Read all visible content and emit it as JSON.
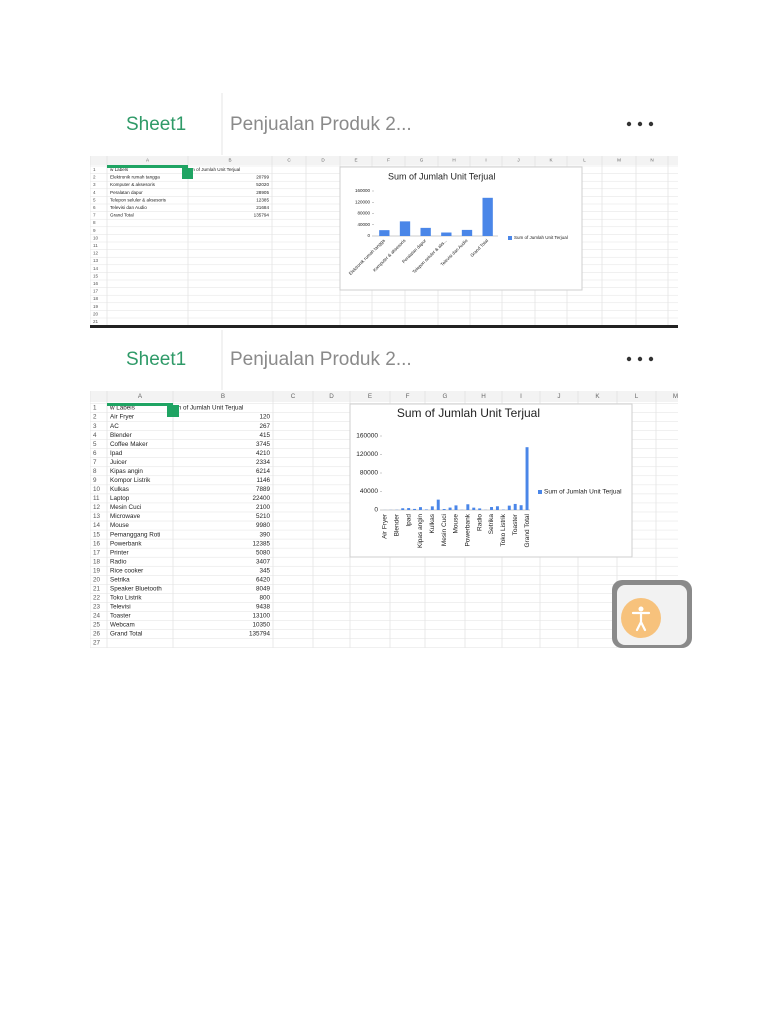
{
  "panels": [
    {
      "tabs": {
        "sheet": "Sheet1",
        "file": "Penjualan Produk 2..."
      },
      "columns": [
        "A",
        "B",
        "C",
        "D",
        "E",
        "F",
        "G",
        "H",
        "I",
        "J",
        "K",
        "L",
        "M",
        "N"
      ],
      "row_numbers": [
        1,
        2,
        3,
        4,
        5,
        6,
        7,
        8,
        9,
        10,
        11,
        12,
        13,
        14,
        15,
        16,
        17,
        18,
        19,
        20,
        21
      ],
      "rows": [
        [
          "w Labels",
          "m of Jumlah Unit Terjual"
        ],
        [
          "Elektronik rumah tangga",
          20799
        ],
        [
          "Komputer & aksesoris",
          52020
        ],
        [
          "Peralatan dapur",
          28905
        ],
        [
          "Telepon seluler & aksesoris",
          12385
        ],
        [
          "Televisi dan Audio",
          21684
        ],
        [
          "Grand Total",
          135794
        ]
      ],
      "chart": {
        "type": "bar",
        "title": "Sum of Jumlah Unit Terjual",
        "categories": [
          "Elektronik rumah tangga",
          "Komputer & aksesoris",
          "Peralatan dapur",
          "Telepon seluler & aks...",
          "Televisi dan Audio",
          "Grand Total"
        ],
        "legend": "Sum of Jumlah Unit Terjual",
        "color": "#4a86e8",
        "ylim": [
          0,
          160000
        ],
        "yticks": [
          0,
          40000,
          80000,
          120000,
          160000
        ]
      }
    },
    {
      "tabs": {
        "sheet": "Sheet1",
        "file": "Penjualan Produk 2..."
      },
      "columns": [
        "A",
        "B",
        "C",
        "D",
        "E",
        "F",
        "G",
        "H",
        "I",
        "J",
        "K",
        "L",
        "M"
      ],
      "row_numbers": [
        1,
        2,
        3,
        4,
        5,
        6,
        7,
        8,
        9,
        10,
        11,
        12,
        13,
        14,
        15,
        16,
        17,
        18,
        19,
        20,
        21,
        22,
        23,
        24,
        25,
        26,
        27
      ],
      "rows": [
        [
          "w Labels",
          "m of Jumlah Unit Terjual"
        ],
        [
          "Air Fryer",
          120
        ],
        [
          "AC",
          267
        ],
        [
          "Blender",
          415
        ],
        [
          "Coffee Maker",
          3745
        ],
        [
          "Ipad",
          4210
        ],
        [
          "Juicer",
          2334
        ],
        [
          "Kipas angin",
          6214
        ],
        [
          "Kompor Listrik",
          1146
        ],
        [
          "Kulkas",
          7889
        ],
        [
          "Laptop",
          22400
        ],
        [
          "Mesin Cuci",
          2100
        ],
        [
          "Microwave",
          5210
        ],
        [
          "Mouse",
          9980
        ],
        [
          "Pemanggang Roti",
          390
        ],
        [
          "Powerbank",
          12385
        ],
        [
          "Printer",
          5080
        ],
        [
          "Radio",
          3407
        ],
        [
          "Rice cooker",
          345
        ],
        [
          "Setrika",
          6420
        ],
        [
          "Speaker Bluetooth",
          8049
        ],
        [
          "Toko Listrik",
          800
        ],
        [
          "Televisi",
          9438
        ],
        [
          "Toaster",
          13100
        ],
        [
          "Webcam",
          10350
        ],
        [
          "Grand Total",
          135794
        ]
      ],
      "chart": {
        "type": "bar",
        "title": "Sum of Jumlah Unit Terjual",
        "categories": [
          "Air Fryer",
          null,
          "Blender",
          null,
          "Ipad",
          null,
          "Kipas angin",
          null,
          "Kulkas",
          null,
          "Mesin Cuci",
          null,
          "Mouse",
          null,
          "Powerbank",
          null,
          "Radio",
          null,
          "Setrika",
          null,
          "Toko Listrik",
          null,
          "Toaster",
          null,
          "Grand Total"
        ],
        "legend": "Sum of Jumlah Unit Terjual",
        "color": "#4a86e8",
        "ylim": [
          0,
          160000
        ],
        "yticks": [
          0,
          40000,
          80000,
          120000,
          160000
        ]
      }
    }
  ]
}
